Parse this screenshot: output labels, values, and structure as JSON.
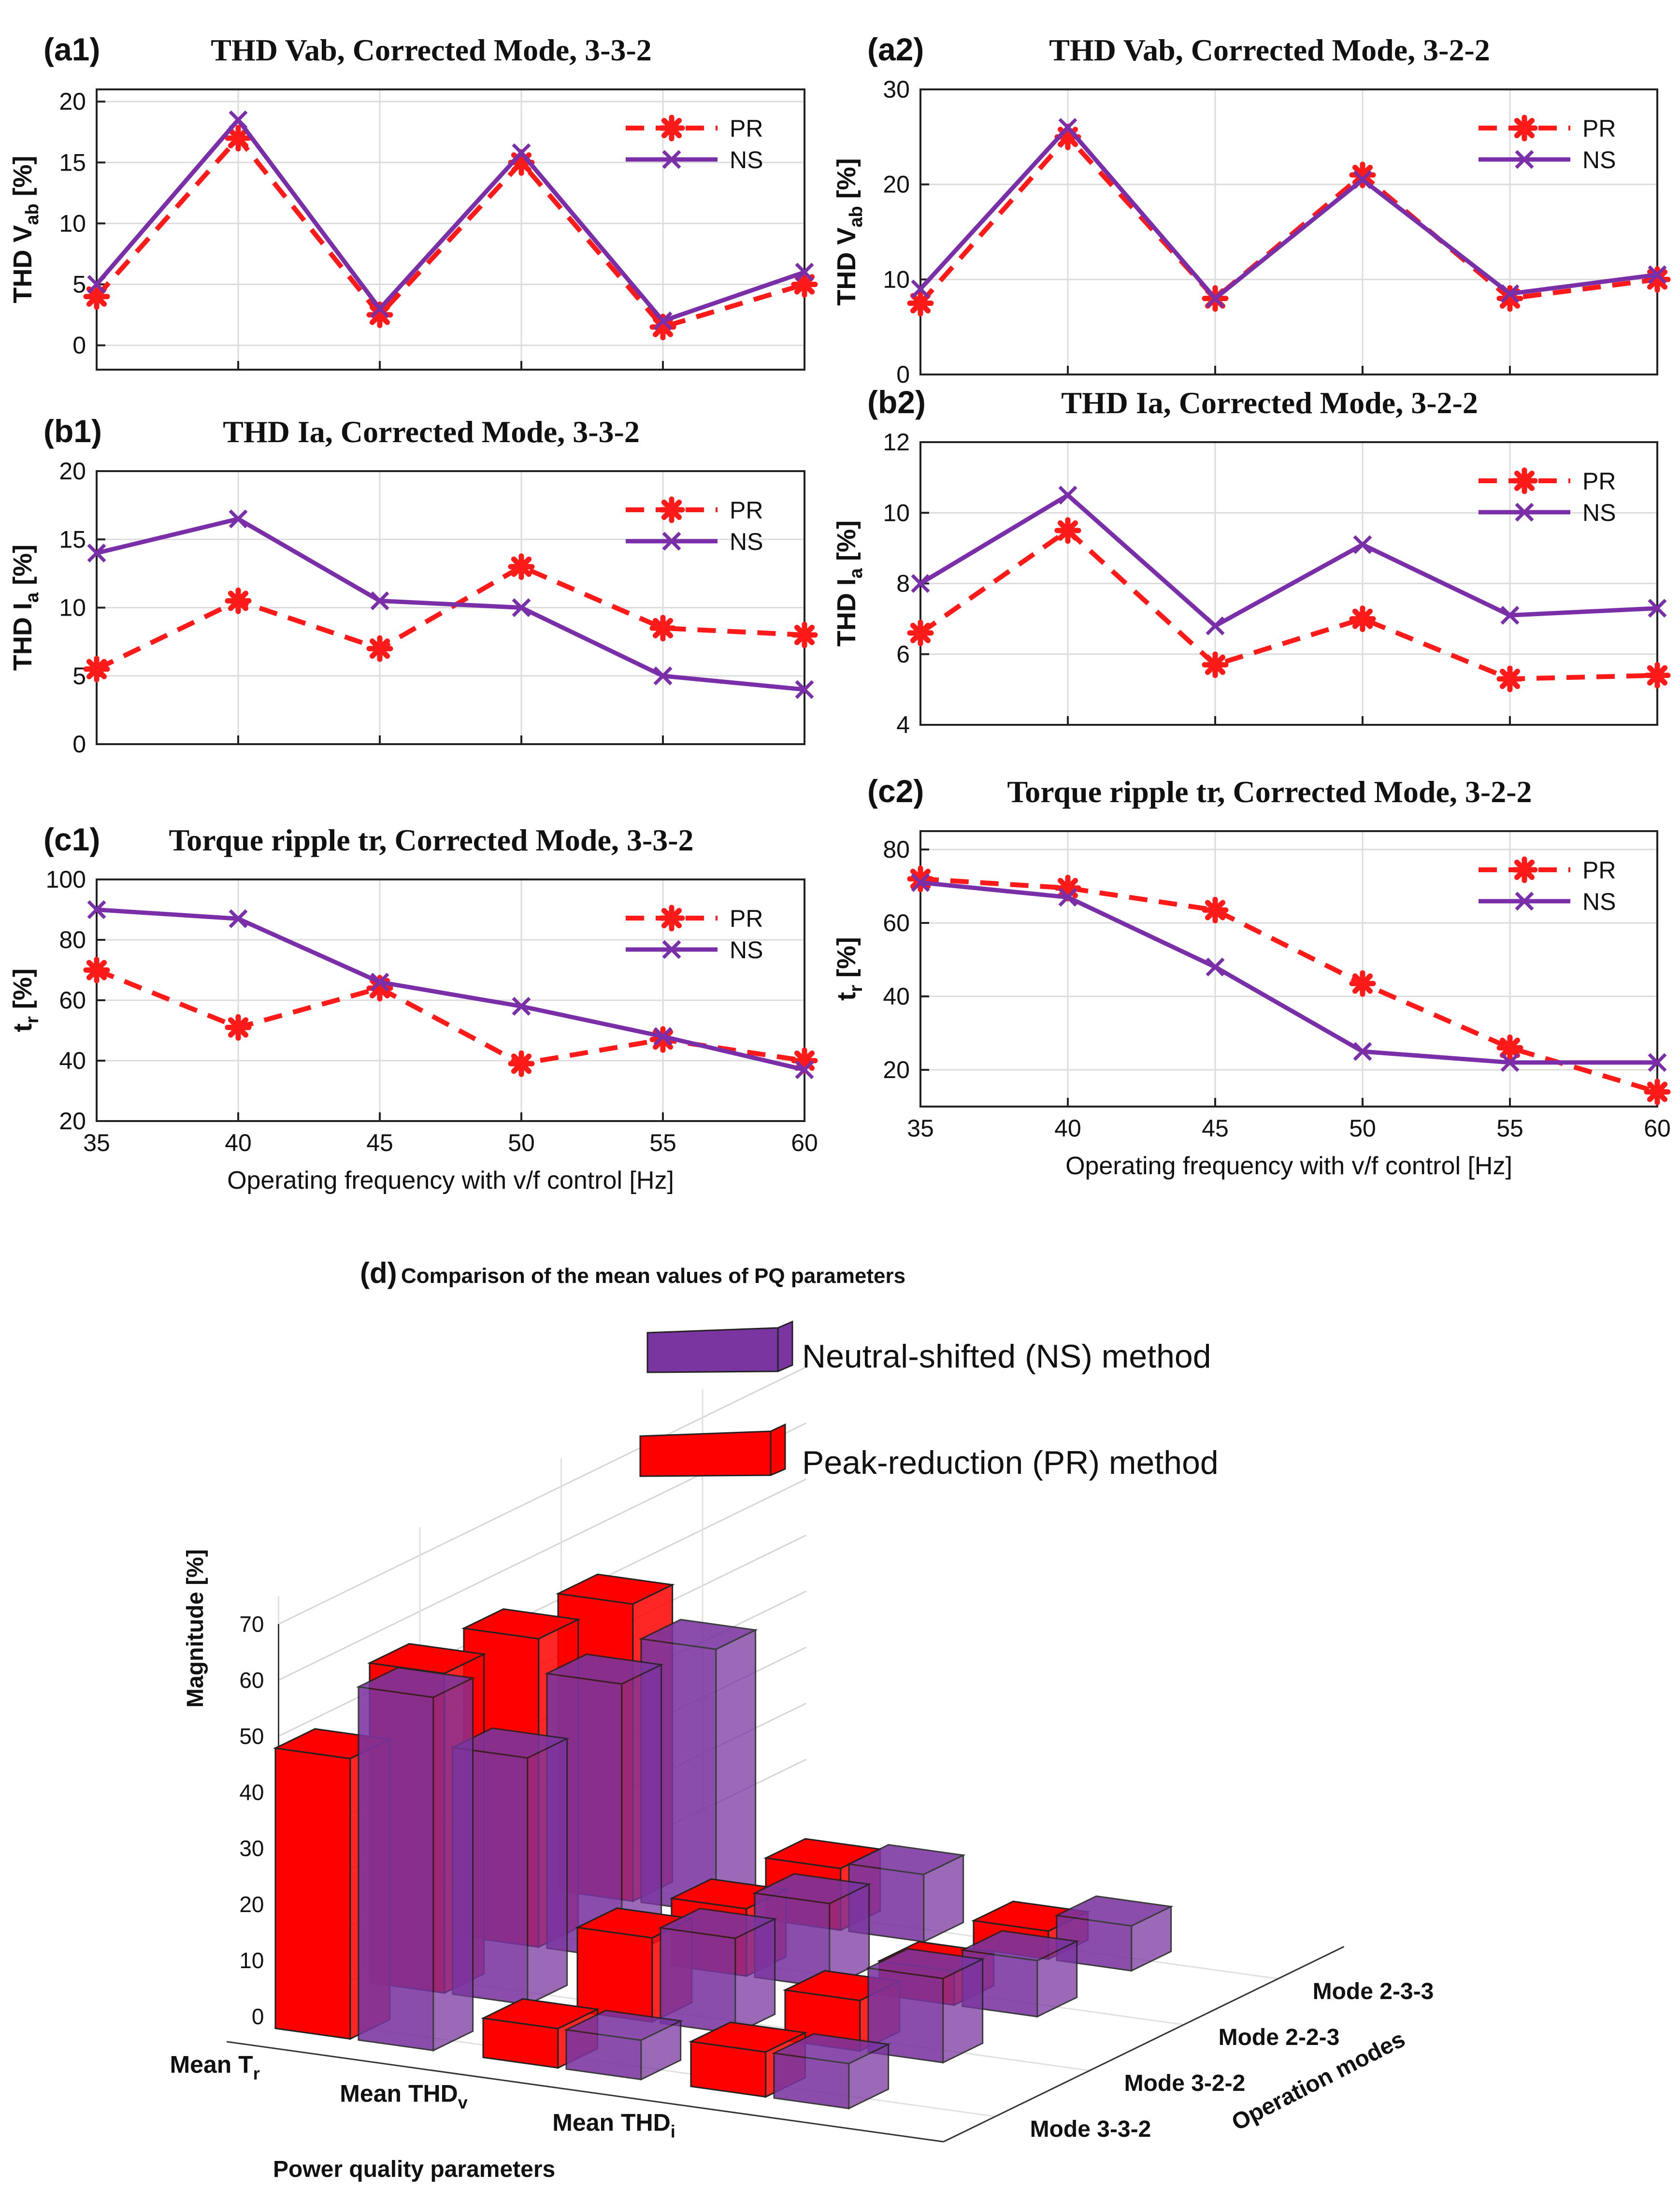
{
  "colors": {
    "pr": "#ff1a1a",
    "ns": "#7a2fa8",
    "pr_bar": "#ff0000",
    "ns_bar": "#7a35a0"
  },
  "shared": {
    "xlabel": "Operating frequency with v/f control [Hz]"
  },
  "chart_data": [
    {
      "type": "line",
      "panel": "(a1)",
      "title": "THD Vab,  Corrected Mode,  3-3-2",
      "ylabel_main": "THD  V",
      "ylabel_sub": "ab",
      "ylabel_tail": "  [%]",
      "x": [
        35,
        40,
        45,
        50,
        55,
        60
      ],
      "xlim": [
        35,
        60
      ],
      "ylim": [
        -2,
        21
      ],
      "yticks": [
        0,
        5,
        10,
        15,
        20
      ],
      "xticks": [],
      "legend": "top-right",
      "series": [
        {
          "name": "PR",
          "values": [
            4,
            17,
            2.5,
            15,
            1.5,
            5
          ]
        },
        {
          "name": "NS",
          "values": [
            5,
            18.5,
            3,
            15.8,
            2,
            6
          ]
        }
      ]
    },
    {
      "type": "line",
      "panel": "(a2)",
      "title": "THD Vab,  Corrected Mode,  3-2-2",
      "ylabel_main": "THD  V",
      "ylabel_sub": "ab",
      "ylabel_tail": "  [%]",
      "x": [
        35,
        40,
        45,
        50,
        55,
        60
      ],
      "xlim": [
        35,
        60
      ],
      "ylim": [
        0,
        30
      ],
      "yticks": [
        0,
        10,
        20,
        30
      ],
      "xticks": [],
      "legend": "top-right",
      "series": [
        {
          "name": "PR",
          "values": [
            7.5,
            25,
            8,
            21,
            8,
            10
          ]
        },
        {
          "name": "NS",
          "values": [
            9,
            26,
            8,
            20.5,
            8.5,
            10.5
          ]
        }
      ]
    },
    {
      "type": "line",
      "panel": "(b1)",
      "title": "THD Ia,  Corrected Mode,  3-3-2",
      "ylabel_main": "THD  I",
      "ylabel_sub": "a",
      "ylabel_tail": "  [%]",
      "x": [
        35,
        40,
        45,
        50,
        55,
        60
      ],
      "xlim": [
        35,
        60
      ],
      "ylim": [
        0,
        20
      ],
      "yticks": [
        0,
        5,
        10,
        15,
        20
      ],
      "xticks": [],
      "legend": "top-right",
      "series": [
        {
          "name": "PR",
          "values": [
            5.5,
            10.5,
            7,
            13,
            8.5,
            8
          ]
        },
        {
          "name": "NS",
          "values": [
            14,
            16.5,
            10.5,
            10,
            5,
            4
          ]
        }
      ]
    },
    {
      "type": "line",
      "panel": "(b2)",
      "title": "THD Ia,  Corrected Mode,  3-2-2",
      "ylabel_main": "THD  I",
      "ylabel_sub": "a",
      "ylabel_tail": "  [%]",
      "x": [
        35,
        40,
        45,
        50,
        55,
        60
      ],
      "xlim": [
        35,
        60
      ],
      "ylim": [
        4,
        12
      ],
      "yticks": [
        4,
        6,
        8,
        10,
        12
      ],
      "xticks": [],
      "legend": "top-right",
      "series": [
        {
          "name": "PR",
          "values": [
            6.6,
            9.5,
            5.7,
            7,
            5.3,
            5.4
          ]
        },
        {
          "name": "NS",
          "values": [
            8,
            10.5,
            6.8,
            9.1,
            7.1,
            7.3
          ]
        }
      ]
    },
    {
      "type": "line",
      "panel": "(c1)",
      "title": "Torque ripple tr,  Corrected Mode,  3-3-2",
      "ylabel_main": "t",
      "ylabel_sub": "r",
      "ylabel_tail": "  [%]",
      "x": [
        35,
        40,
        45,
        50,
        55,
        60
      ],
      "xlim": [
        35,
        60
      ],
      "ylim": [
        20,
        100
      ],
      "yticks": [
        20,
        40,
        60,
        80,
        100
      ],
      "xticks": [
        35,
        40,
        45,
        50,
        55,
        60
      ],
      "legend": "top-right",
      "series": [
        {
          "name": "PR",
          "values": [
            70,
            51,
            64,
            39,
            47,
            40
          ]
        },
        {
          "name": "NS",
          "values": [
            90,
            87,
            66,
            58,
            48,
            37
          ]
        }
      ]
    },
    {
      "type": "line",
      "panel": "(c2)",
      "title": "Torque ripple tr,  Corrected Mode,  3-2-2",
      "ylabel_main": "t",
      "ylabel_sub": "r",
      "ylabel_tail": "  [%]",
      "x": [
        35,
        40,
        45,
        50,
        55,
        60
      ],
      "xlim": [
        35,
        60
      ],
      "ylim": [
        10,
        85
      ],
      "yticks": [
        20,
        40,
        60,
        80
      ],
      "xticks": [
        35,
        40,
        45,
        50,
        55,
        60
      ],
      "legend": "top-right",
      "series": [
        {
          "name": "PR",
          "values": [
            72,
            69.5,
            63.5,
            43.5,
            26,
            14
          ]
        },
        {
          "name": "NS",
          "values": [
            71,
            67,
            48,
            25,
            22,
            22
          ]
        }
      ]
    },
    {
      "type": "bar3d",
      "panel": "(d)",
      "title": "Comparison of the mean values of PQ parameters",
      "zlabel": "Magnitude [%]",
      "xlabel": "Power quality parameters",
      "ylabel": "Operation modes",
      "zlim": [
        0,
        70
      ],
      "zticks": [
        0,
        10,
        20,
        30,
        40,
        50,
        60,
        70
      ],
      "parameters": [
        "Mean  T",
        "Mean  THD",
        "Mean  THD"
      ],
      "parameter_subs": [
        "r",
        "v",
        "i"
      ],
      "modes": [
        "Mode 3-3-2",
        "Mode 3-2-2",
        "Mode 2-2-3",
        "Mode 2-3-3"
      ],
      "legend": {
        "ns": "Neutral-shifted (NS) method",
        "pr": "Peak-reduction (PR) method"
      },
      "series": [
        {
          "name": "PR",
          "values": [
            [
              50,
              57,
              55,
              53
            ],
            [
              7,
              15,
              12,
              11
            ],
            [
              8,
              9,
              6,
              5
            ]
          ]
        },
        {
          "name": "NS",
          "values": [
            [
              63,
              44,
              49,
              47
            ],
            [
              7,
              17,
              15,
              12
            ],
            [
              8,
              15,
              10,
              8
            ]
          ]
        }
      ]
    }
  ]
}
